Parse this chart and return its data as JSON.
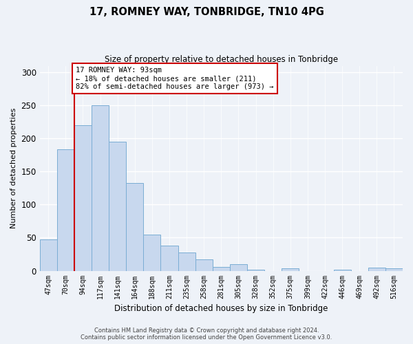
{
  "title": "17, ROMNEY WAY, TONBRIDGE, TN10 4PG",
  "subtitle": "Size of property relative to detached houses in Tonbridge",
  "xlabel": "Distribution of detached houses by size in Tonbridge",
  "ylabel": "Number of detached properties",
  "bar_labels": [
    "47sqm",
    "70sqm",
    "94sqm",
    "117sqm",
    "141sqm",
    "164sqm",
    "188sqm",
    "211sqm",
    "235sqm",
    "258sqm",
    "281sqm",
    "305sqm",
    "328sqm",
    "352sqm",
    "375sqm",
    "399sqm",
    "422sqm",
    "446sqm",
    "469sqm",
    "492sqm",
    "516sqm"
  ],
  "bar_values": [
    47,
    184,
    220,
    250,
    195,
    133,
    55,
    38,
    28,
    17,
    6,
    10,
    2,
    0,
    4,
    0,
    0,
    2,
    0,
    5,
    4
  ],
  "bar_color": "#c8d8ee",
  "bar_edgecolor": "#7aadd4",
  "ylim": [
    0,
    310
  ],
  "yticks": [
    0,
    50,
    100,
    150,
    200,
    250,
    300
  ],
  "property_line_color": "#cc0000",
  "annotation_text_line1": "17 ROMNEY WAY: 93sqm",
  "annotation_text_line2": "← 18% of detached houses are smaller (211)",
  "annotation_text_line3": "82% of semi-detached houses are larger (973) →",
  "annotation_box_color": "#ffffff",
  "annotation_box_edgecolor": "#cc0000",
  "footer_line1": "Contains HM Land Registry data © Crown copyright and database right 2024.",
  "footer_line2": "Contains public sector information licensed under the Open Government Licence v3.0.",
  "background_color": "#eef2f8",
  "grid_color": "#ffffff",
  "property_bin_index": 2
}
